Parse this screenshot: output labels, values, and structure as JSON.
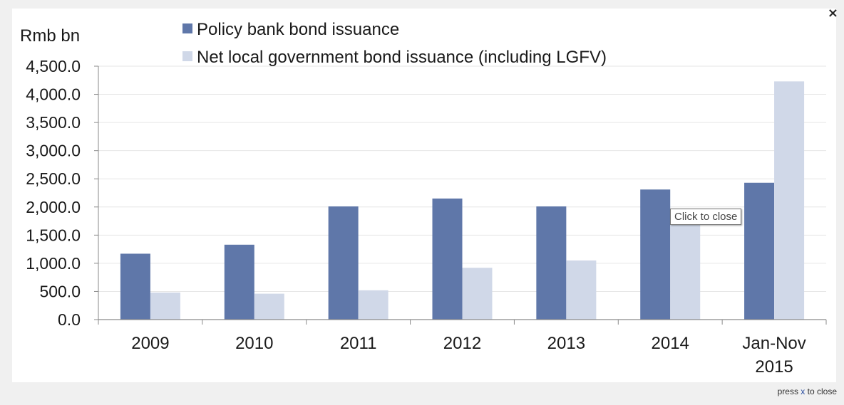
{
  "window": {
    "close_symbol": "×",
    "footer_prefix": "press ",
    "footer_key": "x",
    "footer_suffix": " to close",
    "tooltip": "Click to close"
  },
  "chart_data": {
    "type": "bar",
    "ylabel": "Rmb bn",
    "ylim": [
      0,
      4500
    ],
    "yticks": [
      "0.0",
      "500.0",
      "1,000.0",
      "1,500.0",
      "2,000.0",
      "2,500.0",
      "3,000.0",
      "3,500.0",
      "4,000.0",
      "4,500.0"
    ],
    "categories": [
      "2009",
      "2010",
      "2011",
      "2012",
      "2013",
      "2014",
      "Jan-Nov\n2015"
    ],
    "grid": true,
    "legend_position": "top",
    "series": [
      {
        "name": "Policy bank bond issuance",
        "color": "#5f77a9",
        "values": [
          1170,
          1330,
          2010,
          2150,
          2010,
          2310,
          2430
        ]
      },
      {
        "name": "Net local government bond issuance (including LGFV)",
        "color": "#d0d8e8",
        "values": [
          480,
          460,
          520,
          920,
          1050,
          1720,
          4230
        ]
      }
    ]
  }
}
